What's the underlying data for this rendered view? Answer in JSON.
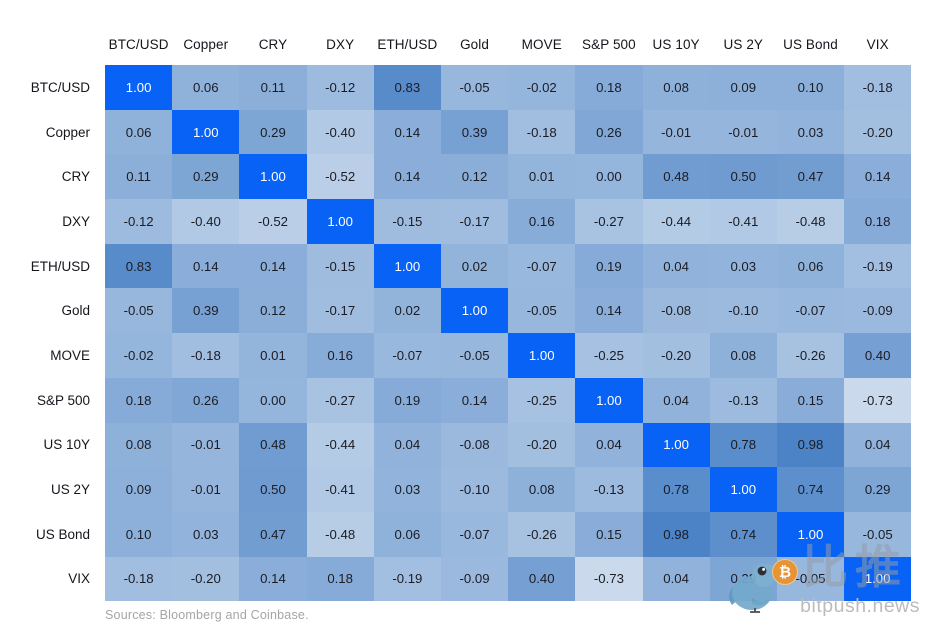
{
  "chart_data": {
    "type": "heatmap",
    "title": "",
    "categories": [
      "BTC/USD",
      "Copper",
      "CRY",
      "DXY",
      "ETH/USD",
      "Gold",
      "MOVE",
      "S&P 500",
      "US 10Y",
      "US 2Y",
      "US Bond",
      "VIX"
    ],
    "rows": [
      {
        "label": "BTC/USD",
        "values": [
          1.0,
          0.06,
          0.11,
          -0.12,
          0.83,
          -0.05,
          -0.02,
          0.18,
          0.08,
          0.09,
          0.1,
          -0.18
        ]
      },
      {
        "label": "Copper",
        "values": [
          0.06,
          1.0,
          0.29,
          -0.4,
          0.14,
          0.39,
          -0.18,
          0.26,
          -0.01,
          -0.01,
          0.03,
          -0.2
        ]
      },
      {
        "label": "CRY",
        "values": [
          0.11,
          0.29,
          1.0,
          -0.52,
          0.14,
          0.12,
          0.01,
          0.0,
          0.48,
          0.5,
          0.47,
          0.14
        ]
      },
      {
        "label": "DXY",
        "values": [
          -0.12,
          -0.4,
          -0.52,
          1.0,
          -0.15,
          -0.17,
          0.16,
          -0.27,
          -0.44,
          -0.41,
          -0.48,
          0.18
        ]
      },
      {
        "label": "ETH/USD",
        "values": [
          0.83,
          0.14,
          0.14,
          -0.15,
          1.0,
          0.02,
          -0.07,
          0.19,
          0.04,
          0.03,
          0.06,
          -0.19
        ]
      },
      {
        "label": "Gold",
        "values": [
          -0.05,
          0.39,
          0.12,
          -0.17,
          0.02,
          1.0,
          -0.05,
          0.14,
          -0.08,
          -0.1,
          -0.07,
          -0.09
        ]
      },
      {
        "label": "MOVE",
        "values": [
          -0.02,
          -0.18,
          0.01,
          0.16,
          -0.07,
          -0.05,
          1.0,
          -0.25,
          -0.2,
          0.08,
          -0.26,
          0.4
        ]
      },
      {
        "label": "S&P 500",
        "values": [
          0.18,
          0.26,
          0.0,
          -0.27,
          0.19,
          0.14,
          -0.25,
          1.0,
          0.04,
          -0.13,
          0.15,
          -0.73
        ]
      },
      {
        "label": "US 10Y",
        "values": [
          0.08,
          -0.01,
          0.48,
          -0.44,
          0.04,
          -0.08,
          -0.2,
          0.04,
          1.0,
          0.78,
          0.98,
          0.04
        ]
      },
      {
        "label": "US 2Y",
        "values": [
          0.09,
          -0.01,
          0.5,
          -0.41,
          0.03,
          -0.1,
          0.08,
          -0.13,
          0.78,
          1.0,
          0.74,
          0.29
        ]
      },
      {
        "label": "US Bond",
        "values": [
          0.1,
          0.03,
          0.47,
          -0.48,
          0.06,
          -0.07,
          -0.26,
          0.15,
          0.98,
          0.74,
          1.0,
          -0.05
        ]
      },
      {
        "label": "VIX",
        "values": [
          -0.18,
          -0.2,
          0.14,
          0.18,
          -0.19,
          -0.09,
          0.4,
          -0.73,
          0.04,
          0.29,
          -0.05,
          1.0
        ]
      }
    ],
    "colors": {
      "diagonal": "#0762f5",
      "diagonal_text": "#ffffff",
      "cell_text": "#1b1c24",
      "scale_low": "#cfdded",
      "scale_high": "#4a82c6",
      "scale_domain": [
        -0.8,
        1.0
      ]
    },
    "value_decimals": 2,
    "legend": "none",
    "grid": "off"
  },
  "footer": {
    "source_note": "Sources: Bloomberg and Coinbase."
  },
  "watermark": {
    "cjk": "比推",
    "brand": "bitpush.news",
    "coin_symbol": "₿",
    "bird_color": "#74a9cc",
    "coin_color": "#ec9330",
    "text_color": "#bcbcbc"
  }
}
